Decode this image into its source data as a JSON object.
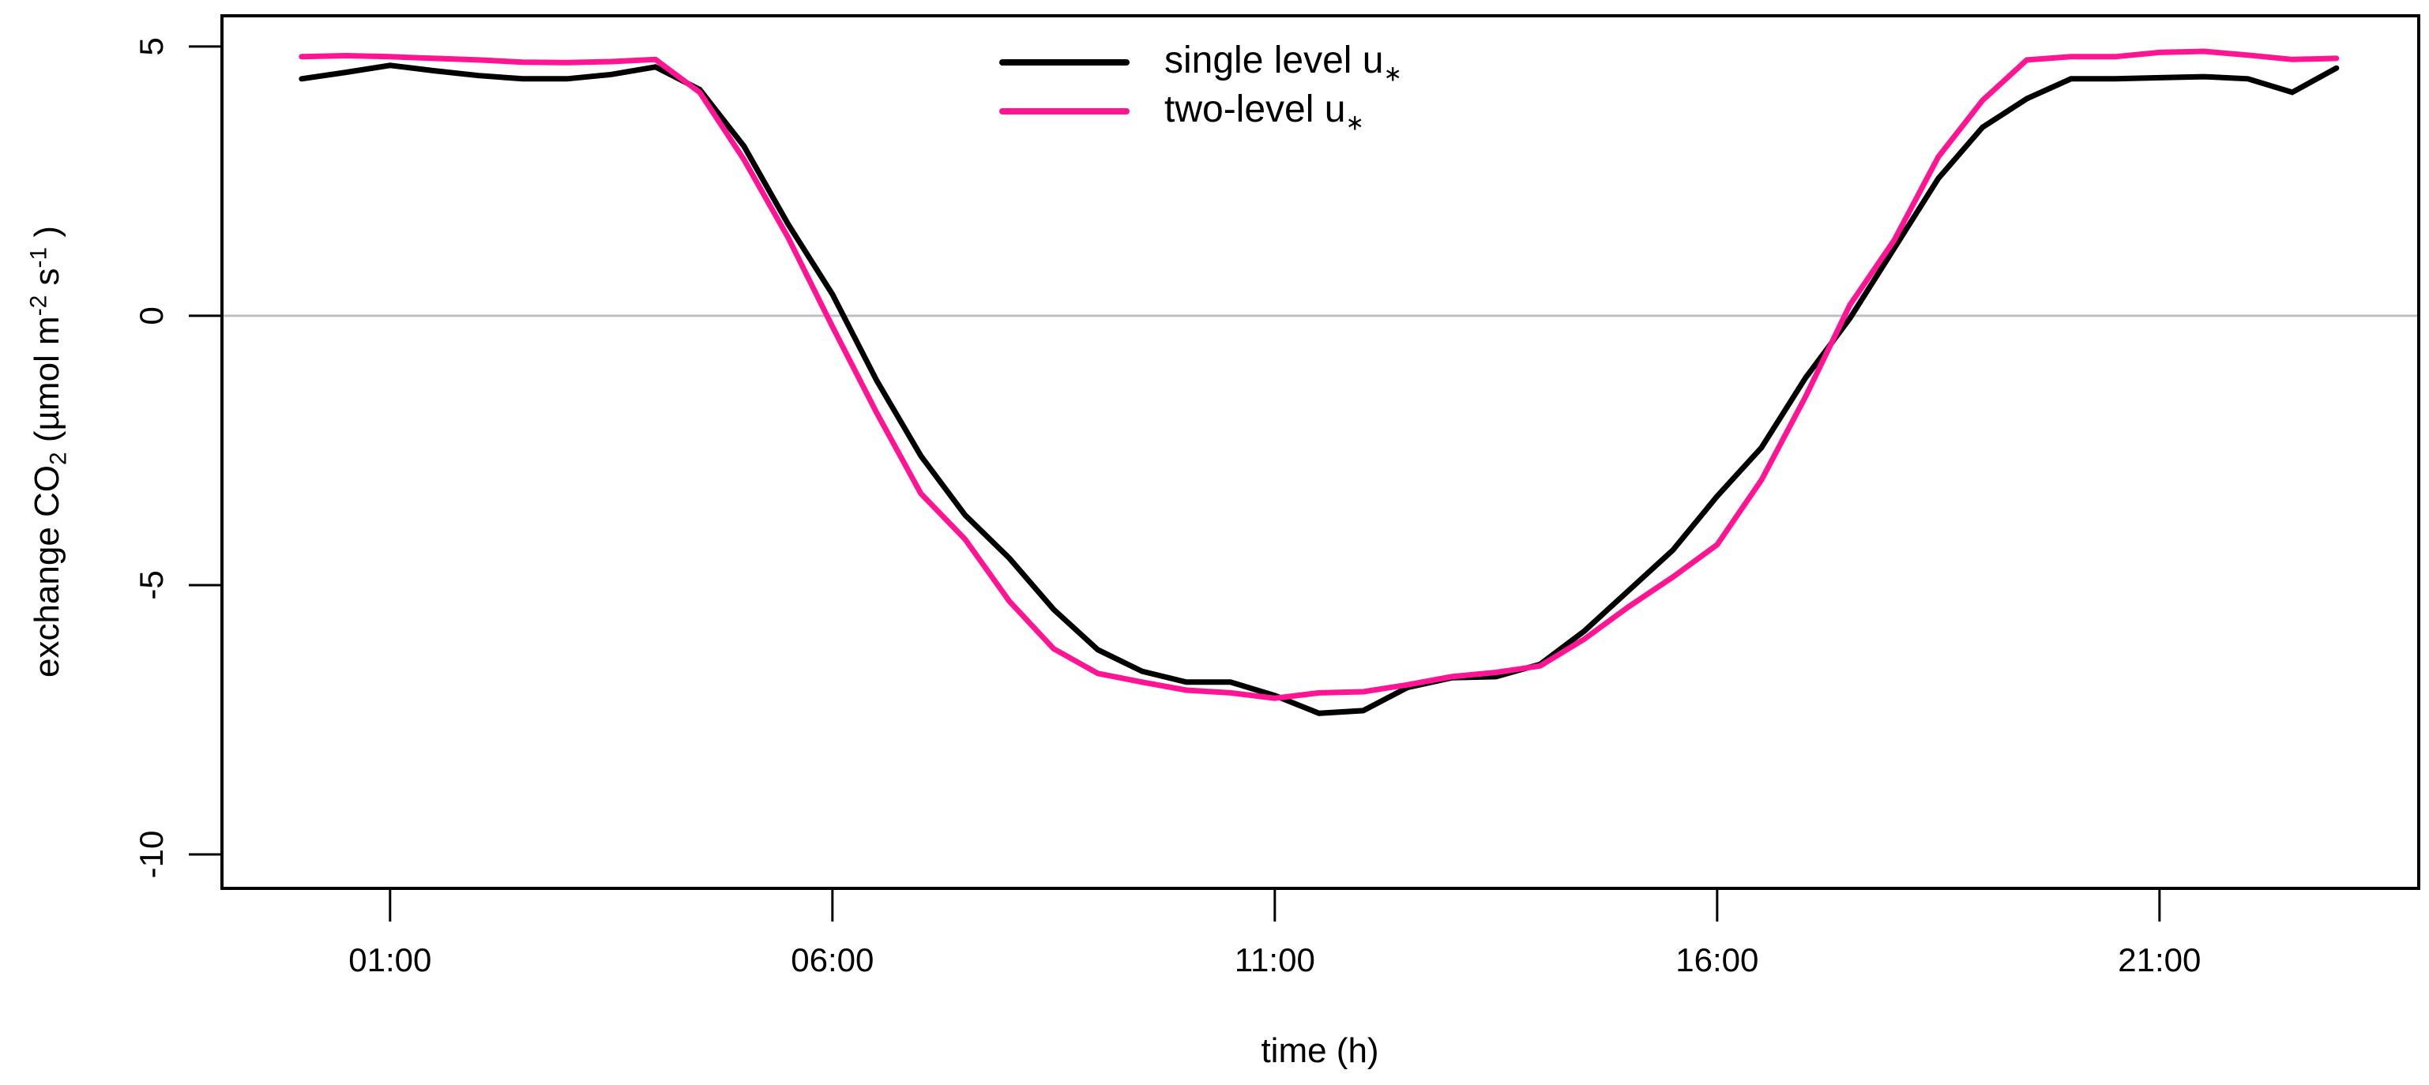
{
  "chart_data": {
    "type": "line",
    "title": "",
    "xlabel": "time (h)",
    "ylabel_plain": "exchange  CO2 (umol m-2 s-1)",
    "grid": "zero-line-only",
    "legend_position": "top-center-inside",
    "xlim": [
      -0.9,
      23.93
    ],
    "ylim": [
      -10.63,
      5.57
    ],
    "x_ticks": [
      {
        "label": "01:00",
        "hour": 1
      },
      {
        "label": "06:00",
        "hour": 6
      },
      {
        "label": "11:00",
        "hour": 11
      },
      {
        "label": "16:00",
        "hour": 16
      },
      {
        "label": "21:00",
        "hour": 21
      }
    ],
    "y_ticks": [
      {
        "label": "5",
        "value": 5
      },
      {
        "label": "0",
        "value": 0
      },
      {
        "label": "-5",
        "value": -5
      },
      {
        "label": "-10",
        "value": -10
      }
    ],
    "x": [
      0,
      0.5,
      1,
      1.5,
      2,
      2.5,
      3,
      3.5,
      4,
      4.5,
      5,
      5.5,
      6,
      6.5,
      7,
      7.5,
      8,
      8.5,
      9,
      9.5,
      10,
      10.5,
      11,
      11.5,
      12,
      12.5,
      13,
      13.5,
      14,
      14.5,
      15,
      15.5,
      16,
      16.5,
      17,
      17.5,
      18,
      18.5,
      19,
      19.5,
      20,
      20.5,
      21,
      21.5,
      22,
      22.5,
      23
    ],
    "series": [
      {
        "key": "single-level-ustar",
        "name": "single level u*",
        "color": "#000000",
        "values": [
          4.4,
          4.52,
          4.65,
          4.55,
          4.46,
          4.4,
          4.4,
          4.48,
          4.62,
          4.2,
          3.15,
          1.7,
          0.4,
          -1.2,
          -2.6,
          -3.7,
          -4.5,
          -5.45,
          -6.2,
          -6.6,
          -6.8,
          -6.8,
          -7.05,
          -7.38,
          -7.33,
          -6.9,
          -6.72,
          -6.7,
          -6.47,
          -5.85,
          -5.1,
          -4.35,
          -3.35,
          -2.45,
          -1.15,
          -0.05,
          1.25,
          2.55,
          3.5,
          4.03,
          4.4,
          4.4,
          4.42,
          4.44,
          4.4,
          4.15,
          4.6
        ]
      },
      {
        "key": "two-level-ustar",
        "name": "two-level u*",
        "color": "#FF1493",
        "values": [
          4.81,
          4.83,
          4.81,
          4.78,
          4.75,
          4.71,
          4.7,
          4.72,
          4.76,
          4.15,
          2.9,
          1.45,
          -0.2,
          -1.8,
          -3.3,
          -4.15,
          -5.3,
          -6.18,
          -6.64,
          -6.8,
          -6.95,
          -7.0,
          -7.1,
          -7.0,
          -6.98,
          -6.85,
          -6.7,
          -6.62,
          -6.5,
          -6.0,
          -5.4,
          -4.85,
          -4.25,
          -3.05,
          -1.5,
          0.2,
          1.4,
          2.95,
          4.0,
          4.75,
          4.81,
          4.81,
          4.89,
          4.91,
          4.84,
          4.76,
          4.78
        ]
      }
    ],
    "zero_line_color": "#bfbfbf"
  },
  "axes": {
    "x_title": "time (h)",
    "y_title": {
      "p1": "exchange  CO",
      "s1": "2",
      "p2": " (µmol  m",
      "u1": "-2",
      "p3": " s",
      "u2": "-1",
      "p4": " )"
    }
  },
  "legend": {
    "items": [
      {
        "label": "single level u",
        "sub": "∗",
        "color": "#000000"
      },
      {
        "label": "two-level u",
        "sub": "∗",
        "color": "#FF1493"
      }
    ]
  },
  "colors": {
    "background": "#ffffff",
    "axis": "#000000",
    "zero_line": "#bfbfbf",
    "series_single": "#000000",
    "series_two": "#FF1493"
  }
}
